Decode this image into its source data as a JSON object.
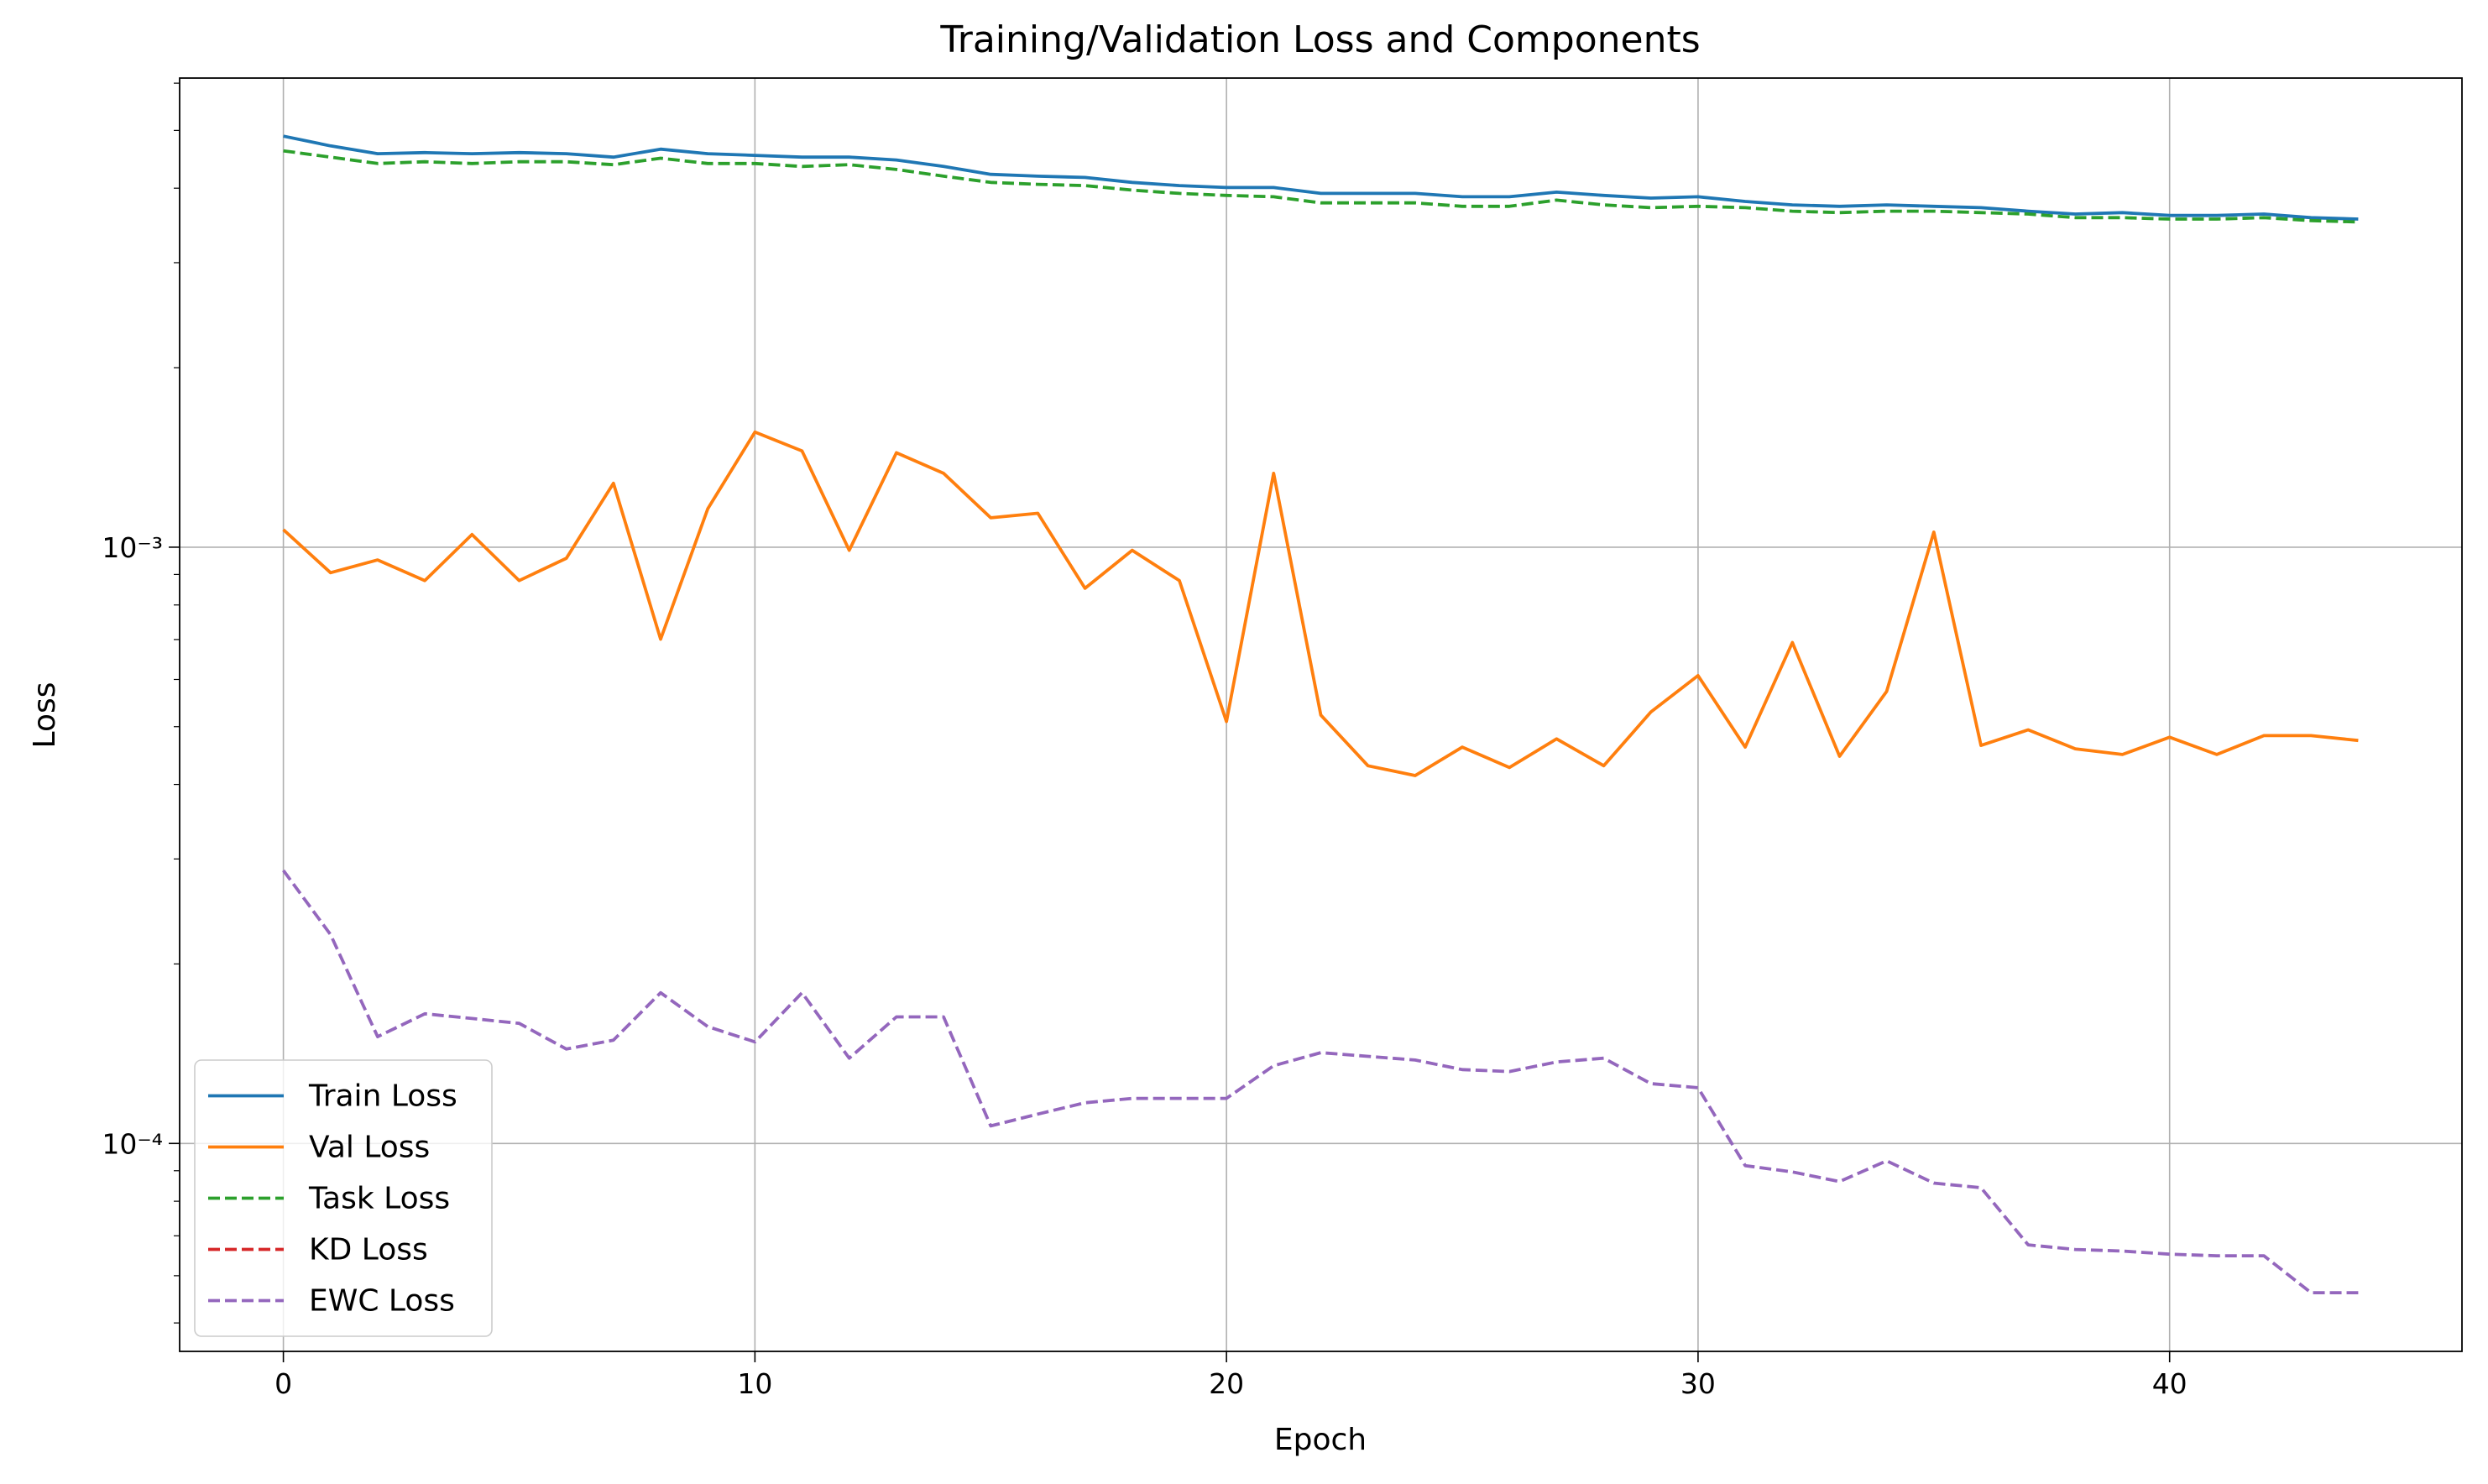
{
  "chart_data": {
    "type": "line",
    "title": "Training/Validation Loss and Components",
    "xlabel": "Epoch",
    "ylabel": "Loss",
    "x": [
      0,
      1,
      2,
      3,
      4,
      5,
      6,
      7,
      8,
      9,
      10,
      11,
      12,
      13,
      14,
      15,
      16,
      17,
      18,
      19,
      20,
      21,
      22,
      23,
      24,
      25,
      26,
      27,
      28,
      29,
      30,
      31,
      32,
      33,
      34,
      35,
      36,
      37,
      38,
      39,
      40,
      41,
      42,
      43,
      44
    ],
    "series": [
      {
        "name": "Train Loss",
        "color": "#1f77b4",
        "dash": "solid",
        "values": [
          0.00489,
          0.00471,
          0.00457,
          0.00459,
          0.00457,
          0.00459,
          0.00457,
          0.00451,
          0.00465,
          0.00457,
          0.00454,
          0.00451,
          0.00451,
          0.00446,
          0.00435,
          0.00422,
          0.00419,
          0.00417,
          0.00409,
          0.00404,
          0.00401,
          0.00401,
          0.00392,
          0.00392,
          0.00392,
          0.00387,
          0.00387,
          0.00394,
          0.00389,
          0.00385,
          0.00387,
          0.0038,
          0.00375,
          0.00373,
          0.00375,
          0.00373,
          0.00371,
          0.00366,
          0.00362,
          0.00364,
          0.0036,
          0.0036,
          0.00362,
          0.00357,
          0.00355
        ]
      },
      {
        "name": "Val Loss",
        "color": "#ff7f0e",
        "dash": "solid",
        "values": [
          0.00107,
          0.000906,
          0.000952,
          0.000879,
          0.00105,
          0.000879,
          0.000958,
          0.00128,
          0.000701,
          0.00116,
          0.00156,
          0.00145,
          0.000988,
          0.00144,
          0.00133,
          0.00112,
          0.00114,
          0.000853,
          0.000988,
          0.000879,
          0.00051,
          0.00133,
          0.000523,
          0.00043,
          0.000414,
          0.000462,
          0.000427,
          0.000477,
          0.00043,
          0.000529,
          0.000609,
          0.000462,
          0.000692,
          0.000446,
          0.000573,
          0.00106,
          0.000465,
          0.000494,
          0.000459,
          0.000449,
          0.00048,
          0.000449,
          0.000483,
          0.000483,
          0.000474
        ]
      },
      {
        "name": "Task Loss",
        "color": "#2ca02c",
        "dash": "dashed",
        "values": [
          0.00462,
          0.00451,
          0.0044,
          0.00443,
          0.0044,
          0.00443,
          0.00443,
          0.00438,
          0.00449,
          0.0044,
          0.0044,
          0.00435,
          0.00438,
          0.0043,
          0.00419,
          0.00409,
          0.00406,
          0.00404,
          0.00397,
          0.00392,
          0.00389,
          0.00387,
          0.00378,
          0.00378,
          0.00378,
          0.00373,
          0.00373,
          0.00382,
          0.00375,
          0.00371,
          0.00373,
          0.00371,
          0.00366,
          0.00364,
          0.00366,
          0.00366,
          0.00364,
          0.00362,
          0.00357,
          0.00357,
          0.00355,
          0.00355,
          0.00357,
          0.00353,
          0.00351
        ]
      },
      {
        "name": "KD Loss",
        "color": "#d62728",
        "dash": "dashed",
        "values": [
          0,
          0,
          0,
          0,
          0,
          0,
          0,
          0,
          0,
          0,
          0,
          0,
          0,
          0,
          0,
          0,
          0,
          0,
          0,
          0,
          0,
          0,
          0,
          0,
          0,
          0,
          0,
          0,
          0,
          0,
          0,
          0,
          0,
          0,
          0,
          0,
          0,
          0,
          0,
          0,
          0,
          0,
          0,
          0,
          0
        ]
      },
      {
        "name": "EWC Loss",
        "color": "#9467bd",
        "dash": "dashed",
        "values": [
          0.000287,
          0.000224,
          0.000151,
          0.000165,
          0.000162,
          0.000159,
          0.000144,
          0.000149,
          0.000179,
          0.000157,
          0.000148,
          0.000179,
          0.000139,
          0.000163,
          0.000163,
          0.000107,
          0.000112,
          0.000117,
          0.000119,
          0.000119,
          0.000119,
          0.000135,
          0.000142,
          0.00014,
          0.000138,
          0.000133,
          0.000132,
          0.000137,
          0.000139,
          0.000126,
          0.000124,
          9.18e-05,
          8.96e-05,
          8.63e-05,
          9.35e-05,
          8.58e-05,
          8.43e-05,
          6.76e-05,
          6.64e-05,
          6.6e-05,
          6.52e-05,
          6.48e-05,
          6.48e-05,
          5.62e-05,
          5.62e-05
        ]
      }
    ],
    "xlim": [
      -2.2,
      46.2
    ],
    "ylim": [
      4.48e-05,
      0.00612
    ],
    "xticks": [
      0,
      10,
      20,
      30,
      40
    ],
    "yticks": [
      {
        "value": 0.0001,
        "label": "10⁻⁴"
      },
      {
        "value": 0.001,
        "label": "10⁻³"
      }
    ],
    "yminorticks": [
      5e-05,
      6e-05,
      7e-05,
      8e-05,
      9e-05,
      0.0002,
      0.0003,
      0.0004,
      0.0005,
      0.0006,
      0.0007,
      0.0008,
      0.0009,
      0.002,
      0.003,
      0.004,
      0.005,
      0.006
    ],
    "ylog": true,
    "grid": true,
    "legend": "lower left"
  }
}
